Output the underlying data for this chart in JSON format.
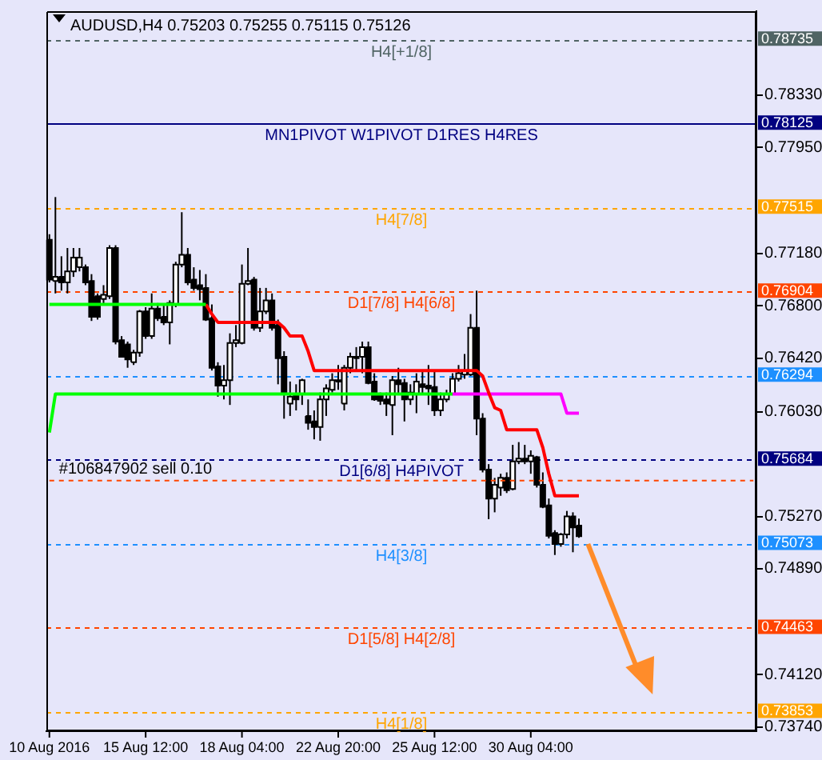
{
  "chart_data": {
    "type": "candlestick",
    "title": "AUDUSD,H4 0.75203 0.75255 0.75115 0.75126",
    "categories": [
      "10 Aug 2016",
      null,
      null,
      null,
      null,
      null,
      null,
      null,
      null,
      null,
      null,
      null,
      null,
      null,
      null,
      null,
      "15 Aug 12:00",
      null,
      null,
      null,
      null,
      null,
      null,
      null,
      null,
      null,
      null,
      null,
      null,
      null,
      null,
      null,
      "18 Aug 04:00",
      null,
      null,
      null,
      null,
      null,
      null,
      null,
      null,
      null,
      null,
      null,
      null,
      null,
      null,
      null,
      "22 Aug 20:00",
      null,
      null,
      null,
      null,
      null,
      null,
      null,
      null,
      null,
      null,
      null,
      null,
      null,
      null,
      null,
      "25 Aug 12:00",
      null,
      null,
      null,
      null,
      null,
      null,
      null,
      null,
      null,
      null,
      null,
      null,
      null,
      null,
      null,
      "30 Aug 04:00",
      null,
      null,
      null,
      null,
      null,
      null,
      null,
      null,
      null,
      null,
      null,
      null,
      null,
      null,
      null,
      null,
      null,
      null,
      null,
      null,
      null,
      null,
      null,
      null,
      null,
      null,
      null,
      null,
      null,
      null,
      null,
      null,
      null,
      null,
      null,
      null,
      null
    ],
    "ohlc": [
      [
        0.7728,
        0.7732,
        0.7697,
        0.7699
      ],
      [
        0.7698,
        0.7759,
        0.7689,
        0.7701
      ],
      [
        0.7701,
        0.7716,
        0.7691,
        0.7697
      ],
      [
        0.7697,
        0.7722,
        0.7689,
        0.7705
      ],
      [
        0.7705,
        0.7722,
        0.7701,
        0.7715
      ],
      [
        0.7708,
        0.7722,
        0.7705,
        0.7715
      ],
      [
        0.7708,
        0.771,
        0.7695,
        0.7697
      ],
      [
        0.7698,
        0.7703,
        0.7669,
        0.7672
      ],
      [
        0.7687,
        0.7689,
        0.767,
        0.7672
      ],
      [
        0.7685,
        0.7695,
        0.7681,
        0.7688
      ],
      [
        0.7687,
        0.7724,
        0.7685,
        0.7722
      ],
      [
        0.7722,
        0.7724,
        0.7652,
        0.7654
      ],
      [
        0.7655,
        0.7658,
        0.7643,
        0.7643
      ],
      [
        0.7652,
        0.7654,
        0.7635,
        0.7641
      ],
      [
        0.7639,
        0.7648,
        0.7637,
        0.7646
      ],
      [
        0.7646,
        0.7677,
        0.7643,
        0.7676
      ],
      [
        0.7676,
        0.7679,
        0.7656,
        0.7658
      ],
      [
        0.7658,
        0.7689,
        0.7656,
        0.7678
      ],
      [
        0.7678,
        0.7682,
        0.7669,
        0.7671
      ],
      [
        0.7672,
        0.7681,
        0.7666,
        0.7668
      ],
      [
        0.7668,
        0.7684,
        0.7652,
        0.7682
      ],
      [
        0.7681,
        0.7712,
        0.7679,
        0.771
      ],
      [
        0.771,
        0.7748,
        0.7708,
        0.7717
      ],
      [
        0.7717,
        0.7722,
        0.7695,
        0.7697
      ],
      [
        0.7699,
        0.7708,
        0.7691,
        0.7693
      ],
      [
        0.7695,
        0.7706,
        0.7684,
        0.7692
      ],
      [
        0.7693,
        0.7703,
        0.7669,
        0.767
      ],
      [
        0.7671,
        0.7681,
        0.7633,
        0.7635
      ],
      [
        0.7636,
        0.7639,
        0.7614,
        0.7622
      ],
      [
        0.7622,
        0.7637,
        0.7612,
        0.7626
      ],
      [
        0.7626,
        0.766,
        0.7608,
        0.7653
      ],
      [
        0.7653,
        0.7666,
        0.765,
        0.7655
      ],
      [
        0.7653,
        0.771,
        0.7652,
        0.7696
      ],
      [
        0.7696,
        0.7722,
        0.7695,
        0.7698
      ],
      [
        0.7699,
        0.7701,
        0.7662,
        0.7664
      ],
      [
        0.7664,
        0.7693,
        0.7661,
        0.7676
      ],
      [
        0.7676,
        0.7693,
        0.7674,
        0.7684
      ],
      [
        0.7684,
        0.7689,
        0.7662,
        0.7664
      ],
      [
        0.7666,
        0.767,
        0.7623,
        0.7642
      ],
      [
        0.7643,
        0.7647,
        0.7598,
        0.7616
      ],
      [
        0.7609,
        0.7625,
        0.76,
        0.7614
      ],
      [
        0.7616,
        0.7623,
        0.7604,
        0.7612
      ],
      [
        0.7616,
        0.7627,
        0.7608,
        0.7626
      ],
      [
        0.76,
        0.7612,
        0.759,
        0.7595
      ],
      [
        0.7596,
        0.7604,
        0.7583,
        0.7592
      ],
      [
        0.7592,
        0.7617,
        0.7582,
        0.7612
      ],
      [
        0.7612,
        0.7623,
        0.76,
        0.762
      ],
      [
        0.7619,
        0.7631,
        0.7617,
        0.7626
      ],
      [
        0.7625,
        0.7637,
        0.7619,
        0.7626
      ],
      [
        0.7609,
        0.7637,
        0.7604,
        0.7635
      ],
      [
        0.7635,
        0.7646,
        0.7631,
        0.7643
      ],
      [
        0.7642,
        0.765,
        0.7633,
        0.7643
      ],
      [
        0.7643,
        0.7654,
        0.7631,
        0.765
      ],
      [
        0.765,
        0.7654,
        0.7623,
        0.7624
      ],
      [
        0.7625,
        0.7631,
        0.7611,
        0.7612
      ],
      [
        0.7615,
        0.7617,
        0.7608,
        0.7611
      ],
      [
        0.7612,
        0.7617,
        0.76,
        0.7609
      ],
      [
        0.7608,
        0.7629,
        0.7586,
        0.7626
      ],
      [
        0.7626,
        0.7635,
        0.7616,
        0.7623
      ],
      [
        0.7624,
        0.7627,
        0.7596,
        0.7612
      ],
      [
        0.7612,
        0.7623,
        0.7608,
        0.7617
      ],
      [
        0.7616,
        0.7631,
        0.7602,
        0.7625
      ],
      [
        0.7623,
        0.7633,
        0.7616,
        0.7621
      ],
      [
        0.7622,
        0.7637,
        0.7608,
        0.762
      ],
      [
        0.7621,
        0.7633,
        0.76,
        0.7604
      ],
      [
        0.7604,
        0.7617,
        0.76,
        0.7612
      ],
      [
        0.7612,
        0.7619,
        0.761,
        0.7616
      ],
      [
        0.7616,
        0.7631,
        0.7615,
        0.7627
      ],
      [
        0.7627,
        0.7637,
        0.7625,
        0.7631
      ],
      [
        0.763,
        0.7645,
        0.7627,
        0.7633
      ],
      [
        0.763,
        0.7674,
        0.7629,
        0.7664
      ],
      [
        0.7664,
        0.7691,
        0.7586,
        0.7598
      ],
      [
        0.7598,
        0.7602,
        0.7559,
        0.7561
      ],
      [
        0.7561,
        0.7565,
        0.7525,
        0.754
      ],
      [
        0.754,
        0.7555,
        0.753,
        0.755
      ],
      [
        0.7548,
        0.7558,
        0.7542,
        0.7555
      ],
      [
        0.7555,
        0.7559,
        0.7544,
        0.7546
      ],
      [
        0.7547,
        0.7579,
        0.7546,
        0.7567
      ],
      [
        0.7567,
        0.7581,
        0.7565,
        0.7569
      ],
      [
        0.7569,
        0.7579,
        0.7565,
        0.7567
      ],
      [
        0.7567,
        0.7575,
        0.7558,
        0.7571
      ],
      [
        0.757,
        0.7571,
        0.7548,
        0.755
      ],
      [
        0.755,
        0.7559,
        0.7533,
        0.7534
      ],
      [
        0.7535,
        0.754,
        0.7511,
        0.7513
      ],
      [
        0.7515,
        0.7517,
        0.7499,
        0.7507
      ],
      [
        0.7507,
        0.7515,
        0.7505,
        0.7514
      ],
      [
        0.7514,
        0.7531,
        0.7511,
        0.7527
      ],
      [
        0.7527,
        0.753,
        0.7501,
        0.7519
      ],
      [
        0.75203,
        0.75255,
        0.75115,
        0.75126
      ],
      null,
      null,
      null,
      null,
      null,
      null,
      null,
      null,
      null,
      null,
      null,
      null,
      null,
      null,
      null,
      null,
      null,
      null,
      null,
      null,
      null,
      null,
      null,
      null,
      null,
      null,
      null,
      null,
      null
    ],
    "series": [
      {
        "type": "line",
        "color": "#00ff00",
        "values": [
          0.7681,
          0.7681,
          0.7681,
          0.7681,
          0.7681,
          0.7681,
          0.7681,
          0.7681,
          0.7681,
          0.7681,
          0.7681,
          0.7681,
          0.7681,
          0.7681,
          0.7681,
          0.7681,
          0.7681,
          0.7681,
          0.7681,
          0.7681,
          0.7681,
          0.7681,
          0.7681,
          0.7681,
          0.7681,
          0.7681,
          0.7681,
          null,
          null,
          null,
          null,
          null,
          null,
          null,
          null,
          null,
          null,
          null,
          null,
          null,
          null,
          null,
          null,
          null,
          null,
          null,
          null,
          null,
          null,
          null,
          null,
          null,
          null,
          null,
          null,
          null,
          null,
          null,
          null,
          null,
          null,
          null,
          null,
          null,
          null,
          null,
          null,
          null,
          null,
          null,
          null,
          null,
          null,
          null,
          null,
          null,
          null,
          null,
          null,
          null,
          null,
          null,
          null,
          null,
          null,
          null,
          null,
          null,
          null,
          null,
          null,
          null,
          null,
          null,
          null,
          null,
          null,
          null,
          null,
          null,
          null,
          null,
          null,
          null,
          null,
          null,
          null,
          null,
          null,
          null,
          null,
          null,
          null,
          null,
          null,
          null,
          null,
          null
        ]
      },
      {
        "type": "line",
        "color": "#ff0000",
        "values": [
          null,
          null,
          null,
          null,
          null,
          null,
          null,
          null,
          null,
          null,
          null,
          null,
          null,
          null,
          null,
          null,
          null,
          null,
          null,
          null,
          null,
          null,
          null,
          null,
          null,
          null,
          0.7681,
          0.7674,
          0.7668,
          0.7668,
          0.7668,
          0.7668,
          0.7668,
          0.7668,
          0.7668,
          0.7668,
          0.7668,
          0.7668,
          0.7668,
          0.7664,
          0.7658,
          0.7658,
          0.7658,
          0.7647,
          0.7633,
          0.7633,
          0.7633,
          0.7633,
          0.7633,
          0.7633,
          0.7633,
          0.7633,
          0.7633,
          0.7633,
          0.7633,
          0.7633,
          0.7633,
          0.7633,
          0.7633,
          0.7633,
          0.7633,
          0.7633,
          0.7633,
          0.7633,
          0.7633,
          0.7633,
          0.7633,
          0.7633,
          0.7633,
          0.7633,
          0.7633,
          0.7633,
          0.7629,
          0.7617,
          0.7606,
          0.7604,
          0.759,
          0.759,
          0.759,
          0.759,
          0.759,
          0.759,
          0.7577,
          0.7558,
          0.7542,
          0.7542,
          0.7542,
          0.7542,
          0.7542,
          null,
          null,
          null,
          null,
          null,
          null,
          null,
          null,
          null,
          null,
          null,
          null,
          null,
          null,
          null,
          null,
          null,
          null,
          null,
          null,
          null,
          null,
          null,
          null,
          null,
          null,
          null,
          null,
          null
        ]
      },
      {
        "type": "line",
        "color": "#00ff00",
        "values": [
          0.7588,
          0.7616,
          0.7616,
          0.7616,
          0.7616,
          0.7616,
          0.7616,
          0.7616,
          0.7616,
          0.7616,
          0.7616,
          0.7616,
          0.7616,
          0.7616,
          0.7616,
          0.7616,
          0.7616,
          0.7616,
          0.7616,
          0.7616,
          0.7616,
          0.7616,
          0.7616,
          0.7616,
          0.7616,
          0.7616,
          0.7616,
          0.7616,
          0.7616,
          0.7616,
          0.7616,
          0.7616,
          0.7616,
          0.7616,
          0.7616,
          0.7616,
          0.7616,
          0.7616,
          0.7616,
          0.7616,
          0.7616,
          0.7616,
          0.7616,
          0.7616,
          0.7616,
          0.7616,
          0.7616,
          0.7616,
          0.7616,
          0.7616,
          0.7616,
          0.7616,
          0.7616,
          0.7616,
          0.7616,
          0.7616,
          0.7616,
          0.7616,
          0.7616,
          0.7616,
          0.7616,
          0.7616,
          0.7616,
          0.7616,
          0.7616,
          0.7616,
          0.7616,
          0.7616,
          null,
          null,
          null,
          null,
          null,
          null,
          null,
          null,
          null,
          null,
          null,
          null,
          null,
          null,
          null,
          null,
          null,
          null,
          null,
          null,
          null,
          null,
          null,
          null,
          null,
          null,
          null,
          null,
          null,
          null,
          null,
          null,
          null,
          null,
          null,
          null,
          null,
          null,
          null,
          null,
          null,
          null,
          null,
          null,
          null,
          null,
          null,
          null,
          null,
          null
        ]
      },
      {
        "type": "line",
        "color": "#ff00ff",
        "values": [
          null,
          null,
          null,
          null,
          null,
          null,
          null,
          null,
          null,
          null,
          null,
          null,
          null,
          null,
          null,
          null,
          null,
          null,
          null,
          null,
          null,
          null,
          null,
          null,
          null,
          null,
          null,
          null,
          null,
          null,
          null,
          null,
          null,
          null,
          null,
          null,
          null,
          null,
          null,
          null,
          null,
          null,
          null,
          null,
          null,
          null,
          null,
          null,
          null,
          null,
          null,
          null,
          null,
          null,
          null,
          null,
          null,
          null,
          null,
          null,
          null,
          null,
          null,
          null,
          null,
          null,
          null,
          0.7616,
          0.7616,
          0.7616,
          0.7616,
          0.7616,
          0.7616,
          0.7616,
          0.7616,
          0.7616,
          0.7616,
          0.7616,
          0.7616,
          0.7616,
          0.7616,
          0.7616,
          0.7616,
          0.7616,
          0.7616,
          0.7616,
          0.7602,
          0.7602,
          0.7602,
          null,
          null,
          null,
          null,
          null,
          null,
          null,
          null,
          null,
          null,
          null,
          null,
          null,
          null,
          null,
          null,
          null,
          null,
          null,
          null,
          null,
          null,
          null,
          null,
          null,
          null,
          null,
          null,
          null
        ]
      },
      {
        "type": "line",
        "name": "#106847902 sell 0.10",
        "color": "#ff4500",
        "line_style": "dashed",
        "values": [
          0.7553,
          0.7553,
          0.7553,
          0.7553,
          0.7553,
          0.7553,
          0.7553,
          0.7553,
          0.7553,
          0.7553,
          0.7553,
          0.7553,
          0.7553,
          0.7553,
          0.7553,
          0.7553,
          0.7553,
          0.7553,
          0.7553,
          0.7553,
          0.7553,
          0.7553,
          0.7553,
          0.7553,
          0.7553,
          0.7553,
          0.7553,
          0.7553,
          0.7553,
          0.7553,
          0.7553,
          0.7553,
          0.7553,
          0.7553,
          0.7553,
          0.7553,
          0.7553,
          0.7553,
          0.7553,
          0.7553,
          0.7553,
          0.7553,
          0.7553,
          0.7553,
          0.7553,
          0.7553,
          0.7553,
          0.7553,
          0.7553,
          0.7553,
          0.7553,
          0.7553,
          0.7553,
          0.7553,
          0.7553,
          0.7553,
          0.7553,
          0.7553,
          0.7553,
          0.7553,
          0.7553,
          0.7553,
          0.7553,
          0.7553,
          0.7553,
          0.7553,
          0.7553,
          0.7553,
          0.7553,
          0.7553,
          0.7553,
          0.7553,
          0.7553,
          0.7553,
          0.7553,
          0.7553,
          0.7553,
          0.7553,
          0.7553,
          0.7553,
          0.7553,
          0.7553,
          0.7553,
          0.7553,
          0.7553,
          0.7553,
          0.7553,
          0.7553,
          0.7553,
          0.7553,
          0.7553,
          0.7553,
          0.7553,
          0.7553,
          0.7553,
          0.7553,
          0.7553,
          0.7553,
          0.7553,
          0.7553,
          0.7553,
          0.7553,
          0.7553,
          0.7553,
          0.7553,
          0.7553,
          0.7553,
          0.7553,
          0.7553,
          0.7553,
          0.7553,
          0.7553,
          0.7553,
          0.7553,
          0.7553,
          0.7553,
          0.7553,
          0.7553
        ]
      }
    ],
    "ylim": [
      0.7371,
      0.7894
    ],
    "yticks": [
      {
        "value": 0.7833,
        "label": "0.78330"
      },
      {
        "value": 0.7795,
        "label": "0.77950"
      },
      {
        "value": 0.7718,
        "label": "0.77180"
      },
      {
        "value": 0.768,
        "label": "0.76800"
      },
      {
        "value": 0.7642,
        "label": "0.76420"
      },
      {
        "value": 0.7603,
        "label": "0.76030"
      },
      {
        "value": 0.7527,
        "label": "0.75270"
      },
      {
        "value": 0.7489,
        "label": "0.74890"
      },
      {
        "value": 0.7412,
        "label": "0.74120"
      },
      {
        "value": 0.7374,
        "label": "0.73740"
      }
    ],
    "ref_lines": [
      {
        "axis": "y",
        "value": 0.78735,
        "label": "H4[+1/8]",
        "color": "#506464",
        "line_style": "dashed"
      },
      {
        "axis": "y",
        "value": 0.78125,
        "label": "MN1PIVOT W1PIVOT D1RES H4RES",
        "color": "#000080",
        "line_style": "solid"
      },
      {
        "axis": "y",
        "value": 0.77515,
        "label": "H4[7/8]",
        "color": "#ffa500",
        "line_style": "dashed"
      },
      {
        "axis": "y",
        "value": 0.76904,
        "label": "D1[7/8] H4[6/8]",
        "color": "#ff4500",
        "line_style": "dashed"
      },
      {
        "axis": "y",
        "value": 0.76294,
        "label": null,
        "color": "#1e90ff",
        "line_style": "dashed"
      },
      {
        "axis": "y",
        "value": 0.75684,
        "label": "D1[6/8] H4PIVOT",
        "color": "#000080",
        "line_style": "dashed"
      },
      {
        "axis": "y",
        "value": 0.75073,
        "label": "H4[3/8]",
        "color": "#1e90ff",
        "line_style": "dashed"
      },
      {
        "axis": "y",
        "value": 0.74463,
        "label": "D1[5/8] H4[2/8]",
        "color": "#ff4500",
        "line_style": "dashed"
      },
      {
        "axis": "y",
        "value": 0.73853,
        "label": "H4[1/8]",
        "color": "#ffa500",
        "line_style": "dashed"
      }
    ],
    "annotations": [
      "0.78735",
      "0.78125",
      "0.77515",
      "0.76904",
      "0.76294",
      "0.75684",
      "0.75073",
      "0.74463",
      "0.73853"
    ]
  }
}
